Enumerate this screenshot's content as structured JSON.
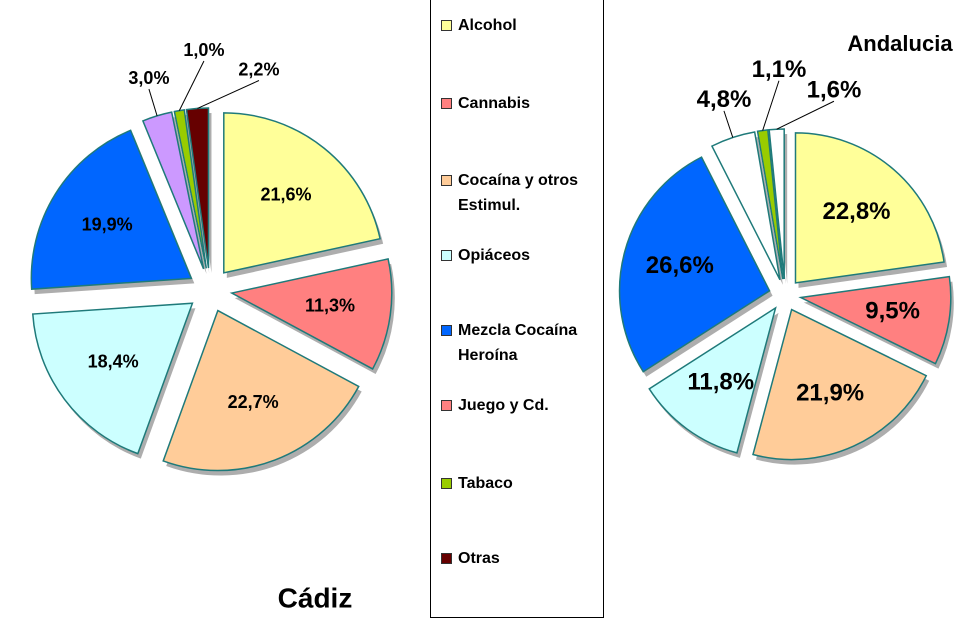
{
  "chart_data": [
    {
      "type": "pie",
      "title": "Cádiz",
      "categories": [
        "Alcohol",
        "Cannabis",
        "Cocaína y otros Estimul.",
        "Opiáceos",
        "Mezcla Cocaína Heroína",
        "Juego y Cd.",
        "Tabaco",
        "Otras"
      ],
      "values": [
        21.6,
        11.3,
        22.7,
        18.4,
        19.9,
        3.0,
        1.0,
        2.2
      ],
      "value_labels": [
        "21,6%",
        "11,3%",
        "22,7%",
        "18,4%",
        "19,9%",
        "3,0%",
        "1,0%",
        "2,2%"
      ],
      "colors": [
        "#ffff99",
        "#ff8080",
        "#ffcc99",
        "#ccffff",
        "#0066ff",
        "#cc99ff",
        "#99cc00",
        "#660000"
      ]
    },
    {
      "type": "pie",
      "title": "Andalucia",
      "categories": [
        "Alcohol",
        "Cannabis",
        "Cocaína y otros Estimul.",
        "Opiáceos",
        "Mezcla Cocaína Heroína",
        "Juego y Cd.",
        "Tabaco",
        "Otras"
      ],
      "values": [
        22.8,
        9.5,
        21.9,
        11.8,
        26.6,
        4.8,
        1.1,
        1.6
      ],
      "value_labels": [
        "22,8%",
        "9,5%",
        "21,9%",
        "11,8%",
        "26,6%",
        "4,8%",
        "1,1%",
        "1,6%"
      ],
      "colors": [
        "#ffff99",
        "#ff8080",
        "#ffcc99",
        "#ccffff",
        "#0066ff",
        "#ffffff",
        "#99cc00",
        "#ffffff"
      ]
    }
  ],
  "legend": {
    "colors": [
      "#ffff99",
      "#ff8080",
      "#ffcc99",
      "#ccffff",
      "#0066ff",
      "#ff8080",
      "#99cc00",
      "#660000"
    ]
  }
}
